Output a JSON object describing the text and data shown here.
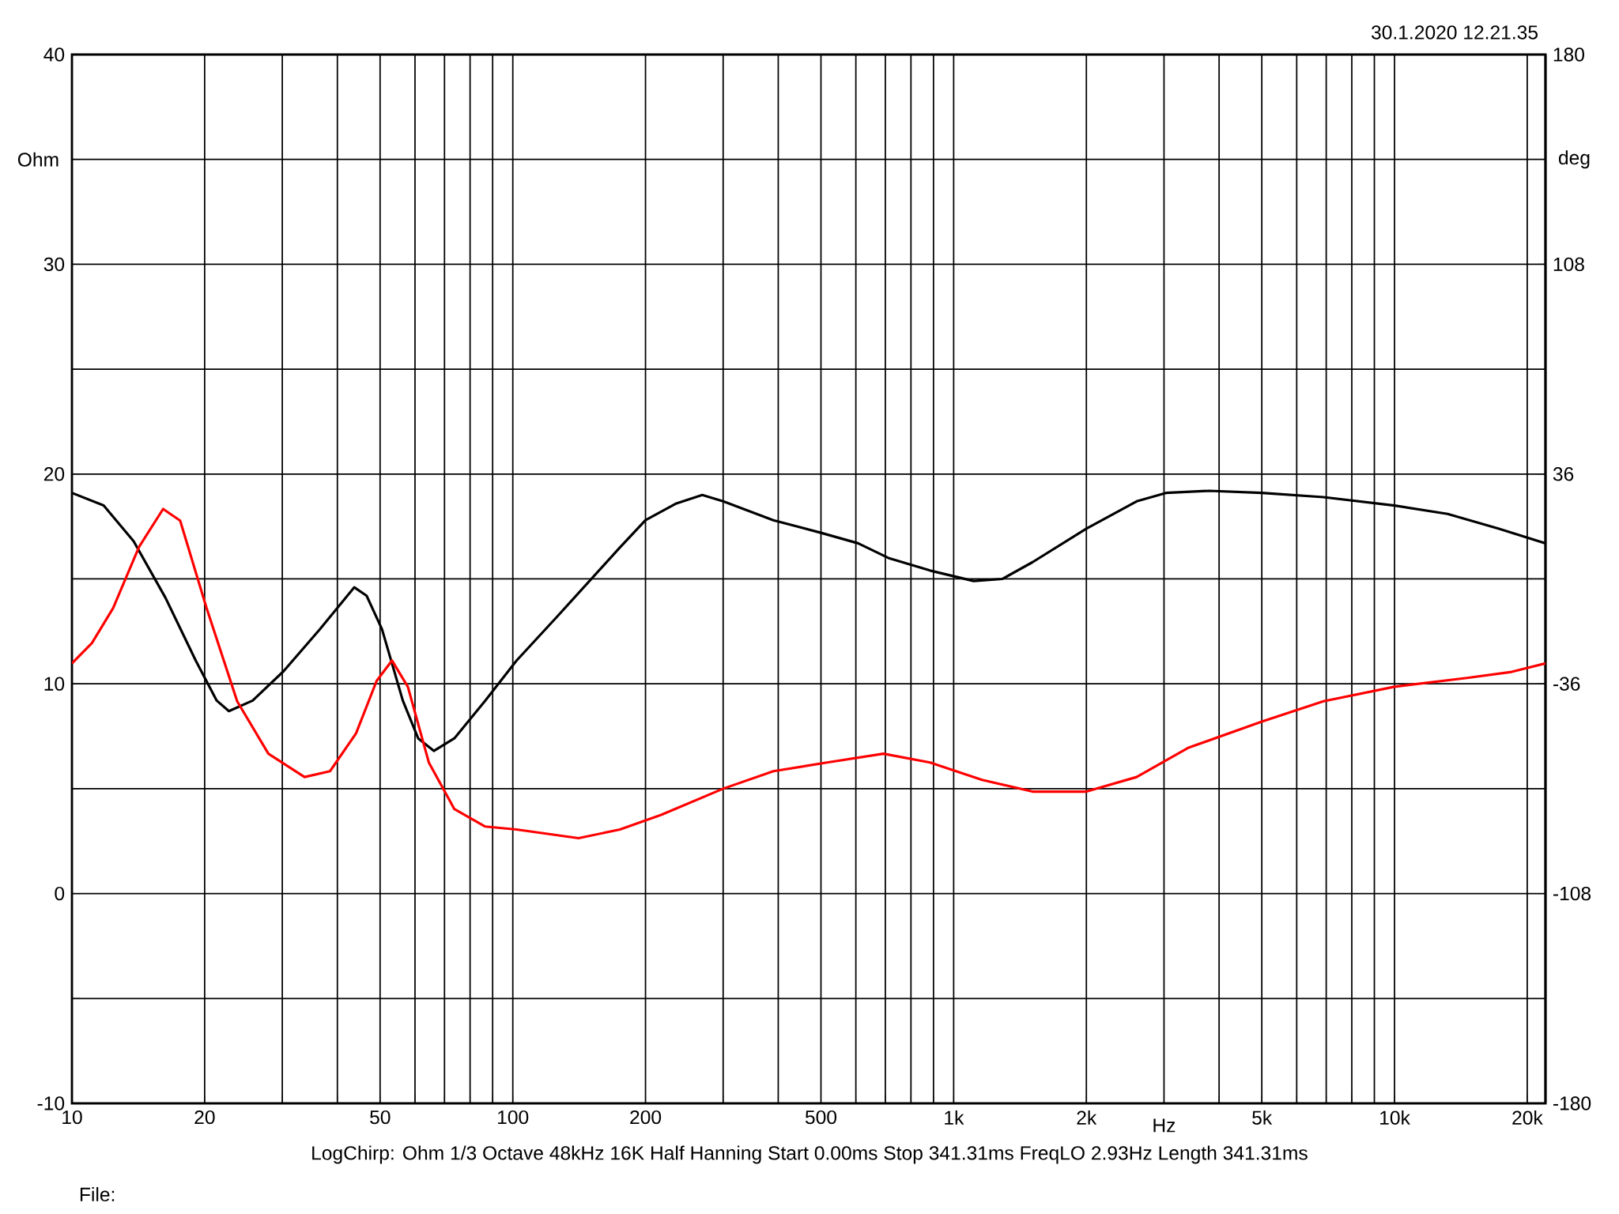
{
  "chart_data": {
    "type": "line",
    "xlabel": "Hz",
    "ylabel": "Ohm",
    "y2label": "deg",
    "log": "x",
    "grid": true,
    "xlim": [
      10,
      22000
    ],
    "xticks": [
      10,
      20,
      {
        "value": 30,
        "label": null
      },
      {
        "value": 40,
        "label": null
      },
      50,
      {
        "value": 60,
        "label": null
      },
      {
        "value": 70,
        "label": null
      },
      {
        "value": 80,
        "label": null
      },
      {
        "value": 90,
        "label": null
      },
      100,
      200,
      {
        "value": 300,
        "label": null
      },
      {
        "value": 400,
        "label": null
      },
      500,
      {
        "value": 600,
        "label": null
      },
      {
        "value": 700,
        "label": null
      },
      {
        "value": 800,
        "label": null
      },
      {
        "value": 900,
        "label": null
      },
      {
        "value": 1000,
        "label": "1k"
      },
      {
        "value": 2000,
        "label": "2k"
      },
      {
        "value": 3000,
        "label": null
      },
      {
        "value": 4000,
        "label": null
      },
      {
        "value": 5000,
        "label": "5k"
      },
      {
        "value": 6000,
        "label": null
      },
      {
        "value": 7000,
        "label": null
      },
      {
        "value": 8000,
        "label": null
      },
      {
        "value": 9000,
        "label": null
      },
      {
        "value": 10000,
        "label": "10k"
      },
      {
        "value": 20000,
        "label": "20k"
      }
    ],
    "ylim": [
      -10,
      40
    ],
    "yticks": [
      -10,
      {
        "value": -5,
        "label": null
      },
      0,
      {
        "value": 5,
        "label": null
      },
      10,
      {
        "value": 15,
        "label": null
      },
      20,
      {
        "value": 25,
        "label": null
      },
      30,
      {
        "value": 35,
        "label": null
      },
      40
    ],
    "y2lim": [
      -180,
      180
    ],
    "y2ticks": [
      -180,
      -108,
      -36,
      36,
      108,
      180
    ],
    "series": [
      {
        "color": "#000000",
        "x": [
          10,
          11.8,
          13.8,
          16.3,
          19.1,
          21.3,
          22.7,
          25.7,
          30.2,
          36.5,
          43.7,
          46.6,
          50.5,
          56.3,
          61,
          66.2,
          73.7,
          86.6,
          101.9,
          126,
          175,
          200,
          235,
          269,
          300,
          390,
          500,
          607,
          711,
          884,
          1110,
          1290,
          1510,
          2000,
          2600,
          3030,
          3800,
          5000,
          6900,
          10000,
          13200,
          17200,
          22000
        ],
        "values": [
          19.1,
          18.5,
          16.8,
          14.1,
          11.1,
          9.2,
          8.7,
          9.2,
          10.6,
          12.6,
          14.6,
          14.2,
          12.6,
          9.2,
          7.4,
          6.8,
          7.4,
          9.2,
          11.1,
          13.2,
          16.5,
          17.8,
          18.6,
          19.0,
          18.7,
          17.8,
          17.2,
          16.7,
          16.0,
          15.4,
          14.9,
          15.0,
          15.8,
          17.4,
          18.7,
          19.1,
          19.2,
          19.1,
          18.9,
          18.5,
          18.1,
          17.4,
          16.7
        ]
      },
      {
        "color": "#ff0000",
        "axis": "y2",
        "x": [
          10,
          11.1,
          12.4,
          14.2,
          16.1,
          17.6,
          20.2,
          23.7,
          27.9,
          33.7,
          38.5,
          44.1,
          49.1,
          53.2,
          57.8,
          64.5,
          73.7,
          86.6,
          101.9,
          141,
          175,
          217,
          300,
          390,
          516,
          693,
          884,
          1160,
          1510,
          2000,
          2600,
          3400,
          5000,
          6900,
          10000,
          14600,
          18300,
          22000
        ],
        "values": [
          -29,
          -22,
          -10,
          11,
          24,
          20,
          -10,
          -42,
          -60,
          -68,
          -66,
          -53,
          -35,
          -28,
          -37,
          -63,
          -79,
          -85,
          -86,
          -89,
          -86,
          -81,
          -72,
          -66,
          -63,
          -60,
          -63,
          -69,
          -73,
          -73,
          -68,
          -58,
          -49,
          -42,
          -37,
          -34,
          -32,
          -29
        ]
      }
    ],
    "annotations": [
      "30.1.2020 12.21.35",
      "LogChirp:  Ohm   1/3 Octave   48kHz   16K   Half Hanning   Start 0.00ms    Stop 341.31ms    FreqLO 2.93Hz    Length 341.31ms",
      "File:"
    ]
  }
}
